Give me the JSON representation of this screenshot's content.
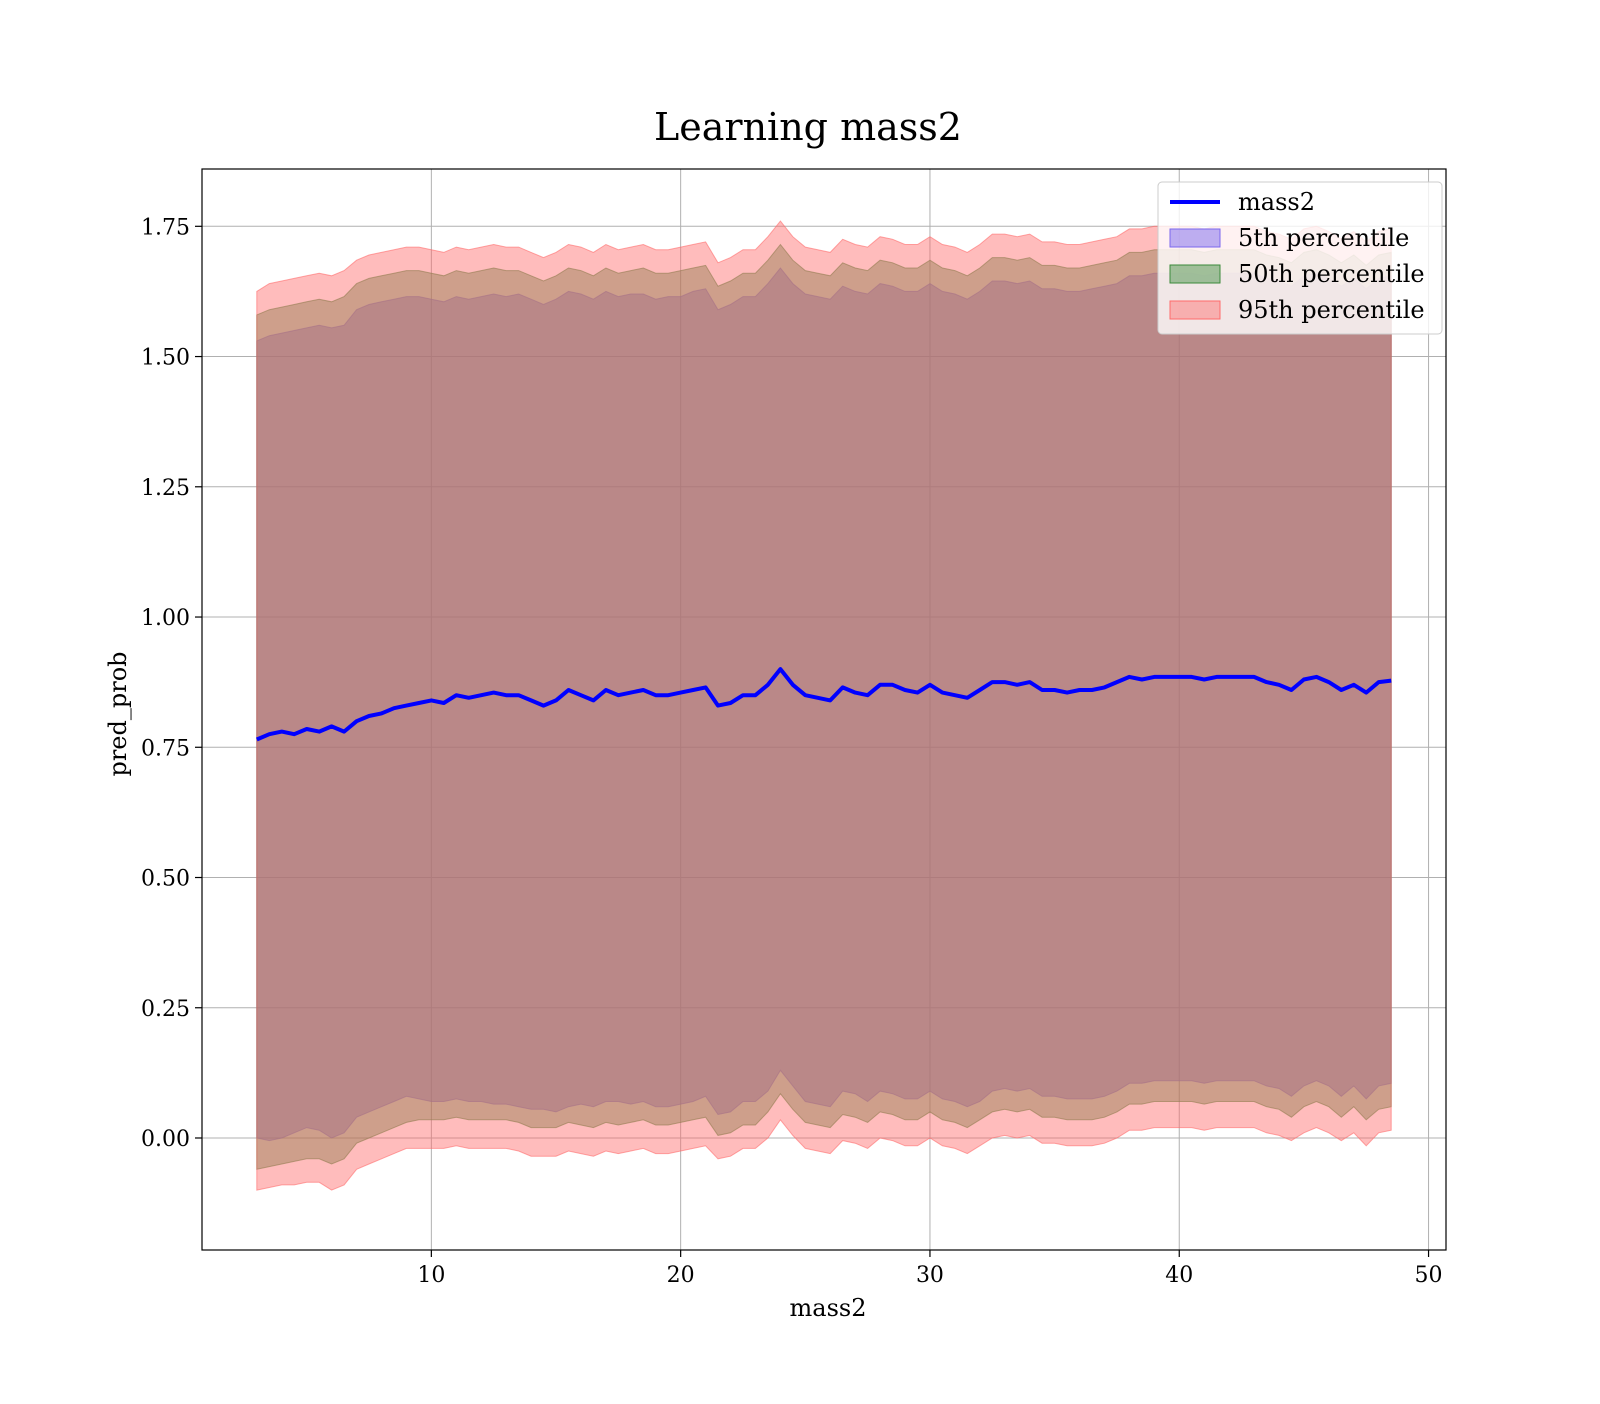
{
  "chart_data": {
    "type": "area",
    "title": "Learning mass2",
    "xlabel": "mass2",
    "ylabel": "pred_prob",
    "xlim": [
      0.8,
      50.7
    ],
    "ylim": [
      -0.215,
      1.86
    ],
    "xticks": [
      10,
      20,
      30,
      40,
      50
    ],
    "yticks": [
      0.0,
      0.25,
      0.5,
      0.75,
      1.0,
      1.25,
      1.5,
      1.75
    ],
    "grid": true,
    "legend_position": "top-right",
    "colors": {
      "line": "#0000ff",
      "p5": "#7b68ee",
      "p50": "#3a8a3a",
      "p95": "#ff6b6b"
    },
    "series": [
      {
        "name": "mass2",
        "type": "line",
        "x": [
          3.0,
          3.5,
          4.0,
          4.5,
          5.0,
          5.5,
          6.0,
          6.5,
          7.0,
          7.5,
          8.0,
          8.5,
          9.0,
          9.5,
          10.0,
          10.5,
          11.0,
          11.5,
          12.0,
          12.5,
          13.0,
          13.5,
          14.0,
          14.5,
          15.0,
          15.5,
          16.0,
          16.5,
          17.0,
          17.5,
          18.0,
          18.5,
          19.0,
          19.5,
          20.0,
          20.5,
          21.0,
          21.5,
          22.0,
          22.5,
          23.0,
          23.5,
          24.0,
          24.5,
          25.0,
          25.5,
          26.0,
          26.5,
          27.0,
          27.5,
          28.0,
          28.5,
          29.0,
          29.5,
          30.0,
          30.5,
          31.0,
          31.5,
          32.0,
          32.5,
          33.0,
          33.5,
          34.0,
          34.5,
          35.0,
          35.5,
          36.0,
          36.5,
          37.0,
          37.5,
          38.0,
          38.5,
          39.0,
          39.5,
          40.0,
          40.5,
          41.0,
          41.5,
          42.0,
          42.5,
          43.0,
          43.5,
          44.0,
          44.5,
          45.0,
          45.5,
          46.0,
          46.5,
          47.0,
          47.5,
          48.0,
          48.5
        ],
        "y": [
          0.765,
          0.775,
          0.78,
          0.775,
          0.785,
          0.78,
          0.79,
          0.78,
          0.8,
          0.81,
          0.815,
          0.825,
          0.83,
          0.835,
          0.84,
          0.835,
          0.85,
          0.845,
          0.85,
          0.855,
          0.85,
          0.85,
          0.84,
          0.83,
          0.84,
          0.86,
          0.85,
          0.84,
          0.86,
          0.85,
          0.855,
          0.86,
          0.85,
          0.85,
          0.855,
          0.86,
          0.865,
          0.83,
          0.835,
          0.85,
          0.85,
          0.87,
          0.9,
          0.87,
          0.85,
          0.845,
          0.84,
          0.865,
          0.855,
          0.85,
          0.87,
          0.87,
          0.86,
          0.855,
          0.87,
          0.855,
          0.85,
          0.845,
          0.86,
          0.875,
          0.875,
          0.87,
          0.875,
          0.86,
          0.86,
          0.855,
          0.86,
          0.86,
          0.865,
          0.875,
          0.885,
          0.88,
          0.885,
          0.885,
          0.885,
          0.885,
          0.88,
          0.885,
          0.885,
          0.885,
          0.885,
          0.875,
          0.87,
          0.86,
          0.88,
          0.885,
          0.875,
          0.86,
          0.87,
          0.855,
          0.875,
          0.878
        ]
      },
      {
        "name": "5th percentile",
        "type": "band",
        "lower": [
          0.0,
          -0.005,
          0.0,
          0.01,
          0.02,
          0.015,
          0.0,
          0.01,
          0.04,
          0.05,
          0.06,
          0.07,
          0.08,
          0.075,
          0.07,
          0.07,
          0.075,
          0.07,
          0.07,
          0.065,
          0.065,
          0.06,
          0.055,
          0.055,
          0.05,
          0.06,
          0.065,
          0.06,
          0.07,
          0.07,
          0.065,
          0.07,
          0.06,
          0.06,
          0.065,
          0.07,
          0.08,
          0.045,
          0.05,
          0.07,
          0.07,
          0.09,
          0.13,
          0.1,
          0.07,
          0.065,
          0.06,
          0.09,
          0.085,
          0.07,
          0.09,
          0.085,
          0.075,
          0.075,
          0.09,
          0.075,
          0.07,
          0.06,
          0.07,
          0.09,
          0.095,
          0.09,
          0.095,
          0.08,
          0.08,
          0.075,
          0.075,
          0.075,
          0.08,
          0.09,
          0.105,
          0.105,
          0.11,
          0.11,
          0.11,
          0.11,
          0.105,
          0.11,
          0.11,
          0.11,
          0.11,
          0.1,
          0.095,
          0.08,
          0.1,
          0.11,
          0.1,
          0.08,
          0.1,
          0.075,
          0.1,
          0.105
        ],
        "upper": [
          1.53,
          1.54,
          1.545,
          1.55,
          1.555,
          1.56,
          1.555,
          1.56,
          1.59,
          1.6,
          1.605,
          1.61,
          1.615,
          1.615,
          1.61,
          1.605,
          1.615,
          1.61,
          1.615,
          1.62,
          1.615,
          1.62,
          1.61,
          1.6,
          1.61,
          1.625,
          1.62,
          1.61,
          1.625,
          1.615,
          1.62,
          1.62,
          1.61,
          1.615,
          1.615,
          1.625,
          1.63,
          1.59,
          1.6,
          1.615,
          1.615,
          1.64,
          1.67,
          1.64,
          1.62,
          1.615,
          1.61,
          1.635,
          1.625,
          1.62,
          1.64,
          1.635,
          1.625,
          1.625,
          1.64,
          1.625,
          1.62,
          1.61,
          1.625,
          1.645,
          1.645,
          1.64,
          1.645,
          1.63,
          1.63,
          1.625,
          1.625,
          1.63,
          1.635,
          1.64,
          1.655,
          1.655,
          1.66,
          1.66,
          1.66,
          1.66,
          1.655,
          1.66,
          1.66,
          1.66,
          1.66,
          1.65,
          1.645,
          1.635,
          1.655,
          1.66,
          1.65,
          1.635,
          1.65,
          1.63,
          1.65,
          1.655
        ]
      },
      {
        "name": "50th percentile",
        "type": "band",
        "lower": [
          -0.06,
          -0.055,
          -0.05,
          -0.045,
          -0.04,
          -0.04,
          -0.05,
          -0.04,
          -0.01,
          0.0,
          0.01,
          0.02,
          0.03,
          0.035,
          0.035,
          0.035,
          0.04,
          0.035,
          0.035,
          0.035,
          0.035,
          0.03,
          0.02,
          0.02,
          0.02,
          0.03,
          0.025,
          0.02,
          0.03,
          0.025,
          0.03,
          0.035,
          0.025,
          0.025,
          0.03,
          0.035,
          0.04,
          0.005,
          0.01,
          0.025,
          0.025,
          0.05,
          0.085,
          0.055,
          0.03,
          0.025,
          0.02,
          0.045,
          0.04,
          0.03,
          0.05,
          0.045,
          0.035,
          0.035,
          0.05,
          0.035,
          0.03,
          0.02,
          0.035,
          0.05,
          0.055,
          0.05,
          0.055,
          0.04,
          0.04,
          0.035,
          0.035,
          0.035,
          0.04,
          0.05,
          0.065,
          0.065,
          0.07,
          0.07,
          0.07,
          0.07,
          0.065,
          0.07,
          0.07,
          0.07,
          0.07,
          0.06,
          0.055,
          0.04,
          0.06,
          0.07,
          0.06,
          0.04,
          0.06,
          0.035,
          0.055,
          0.06
        ],
        "upper": [
          1.58,
          1.59,
          1.595,
          1.6,
          1.605,
          1.61,
          1.605,
          1.615,
          1.64,
          1.65,
          1.655,
          1.66,
          1.665,
          1.665,
          1.66,
          1.655,
          1.665,
          1.66,
          1.665,
          1.67,
          1.665,
          1.665,
          1.655,
          1.645,
          1.655,
          1.67,
          1.665,
          1.655,
          1.67,
          1.66,
          1.665,
          1.67,
          1.66,
          1.66,
          1.665,
          1.67,
          1.675,
          1.635,
          1.645,
          1.66,
          1.66,
          1.685,
          1.715,
          1.685,
          1.665,
          1.66,
          1.655,
          1.68,
          1.67,
          1.665,
          1.685,
          1.68,
          1.67,
          1.67,
          1.685,
          1.67,
          1.665,
          1.655,
          1.67,
          1.69,
          1.69,
          1.685,
          1.69,
          1.675,
          1.675,
          1.67,
          1.67,
          1.675,
          1.68,
          1.685,
          1.7,
          1.7,
          1.705,
          1.705,
          1.705,
          1.705,
          1.7,
          1.705,
          1.705,
          1.705,
          1.705,
          1.695,
          1.69,
          1.68,
          1.7,
          1.705,
          1.695,
          1.68,
          1.695,
          1.675,
          1.695,
          1.7
        ]
      },
      {
        "name": "95th percentile",
        "type": "band",
        "lower": [
          -0.1,
          -0.095,
          -0.09,
          -0.09,
          -0.085,
          -0.085,
          -0.1,
          -0.09,
          -0.06,
          -0.05,
          -0.04,
          -0.03,
          -0.02,
          -0.02,
          -0.02,
          -0.02,
          -0.015,
          -0.02,
          -0.02,
          -0.02,
          -0.02,
          -0.025,
          -0.035,
          -0.035,
          -0.035,
          -0.025,
          -0.03,
          -0.035,
          -0.025,
          -0.03,
          -0.025,
          -0.02,
          -0.03,
          -0.03,
          -0.025,
          -0.02,
          -0.015,
          -0.04,
          -0.035,
          -0.02,
          -0.02,
          0.0,
          0.035,
          0.005,
          -0.02,
          -0.025,
          -0.03,
          -0.005,
          -0.01,
          -0.02,
          0.0,
          -0.005,
          -0.015,
          -0.015,
          0.0,
          -0.015,
          -0.02,
          -0.03,
          -0.015,
          0.0,
          0.005,
          0.0,
          0.005,
          -0.01,
          -0.01,
          -0.015,
          -0.015,
          -0.015,
          -0.01,
          0.0,
          0.015,
          0.015,
          0.02,
          0.02,
          0.02,
          0.02,
          0.015,
          0.02,
          0.02,
          0.02,
          0.02,
          0.01,
          0.005,
          -0.005,
          0.01,
          0.02,
          0.01,
          -0.005,
          0.01,
          -0.015,
          0.01,
          0.015
        ],
        "upper": [
          1.625,
          1.64,
          1.645,
          1.65,
          1.655,
          1.66,
          1.655,
          1.665,
          1.685,
          1.695,
          1.7,
          1.705,
          1.71,
          1.71,
          1.705,
          1.7,
          1.71,
          1.705,
          1.71,
          1.715,
          1.71,
          1.71,
          1.7,
          1.69,
          1.7,
          1.715,
          1.71,
          1.7,
          1.715,
          1.705,
          1.71,
          1.715,
          1.705,
          1.705,
          1.71,
          1.715,
          1.72,
          1.68,
          1.69,
          1.705,
          1.705,
          1.73,
          1.76,
          1.73,
          1.71,
          1.705,
          1.7,
          1.725,
          1.715,
          1.71,
          1.73,
          1.725,
          1.715,
          1.715,
          1.73,
          1.715,
          1.71,
          1.7,
          1.715,
          1.735,
          1.735,
          1.73,
          1.735,
          1.72,
          1.72,
          1.715,
          1.715,
          1.72,
          1.725,
          1.73,
          1.745,
          1.745,
          1.75,
          1.75,
          1.75,
          1.75,
          1.745,
          1.75,
          1.75,
          1.75,
          1.75,
          1.74,
          1.735,
          1.725,
          1.745,
          1.75,
          1.74,
          1.725,
          1.74,
          1.72,
          1.74,
          1.745
        ]
      }
    ]
  }
}
